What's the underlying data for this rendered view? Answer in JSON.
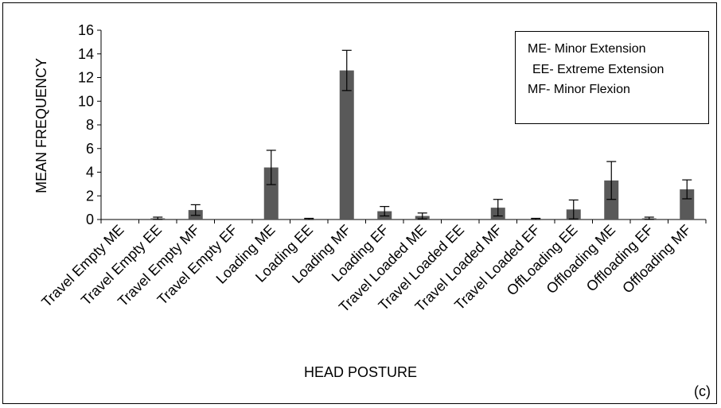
{
  "chart_data": {
    "type": "bar",
    "xlabel": "HEAD POSTURE",
    "ylabel": "MEAN FREQUENCY",
    "ylim": [
      0,
      16
    ],
    "yticks": [
      0,
      2,
      4,
      6,
      8,
      10,
      12,
      14,
      16
    ],
    "grid": false,
    "legend_position": "top-right",
    "legend_lines": [
      "ME- Minor Extension",
      "EE- Extreme Extension",
      "MF- Minor Flexion"
    ],
    "panel_label": "(c)",
    "bar_color": "#595959",
    "categories": [
      "Travel Empty ME",
      "Travel Empty EE",
      "Travel Empty MF",
      "Travel Empty EF",
      "Loading ME",
      "Loading EE",
      "Loading MF",
      "Loading EF",
      "Travel Loaded ME",
      "Travel Loaded EE",
      "Travel Loaded MF",
      "Travel Loaded EF",
      "OffLoading EE",
      "Offloading ME",
      "Offloading EF",
      "Offloading MF"
    ],
    "values": [
      0,
      0.1,
      0.8,
      0,
      4.4,
      0.05,
      12.6,
      0.7,
      0.3,
      0,
      1.0,
      0.05,
      0.85,
      3.3,
      0.1,
      2.55
    ],
    "errors": [
      0,
      0.1,
      0.45,
      0,
      1.45,
      0.05,
      1.7,
      0.4,
      0.25,
      0,
      0.7,
      0.05,
      0.8,
      1.6,
      0.1,
      0.8
    ]
  }
}
